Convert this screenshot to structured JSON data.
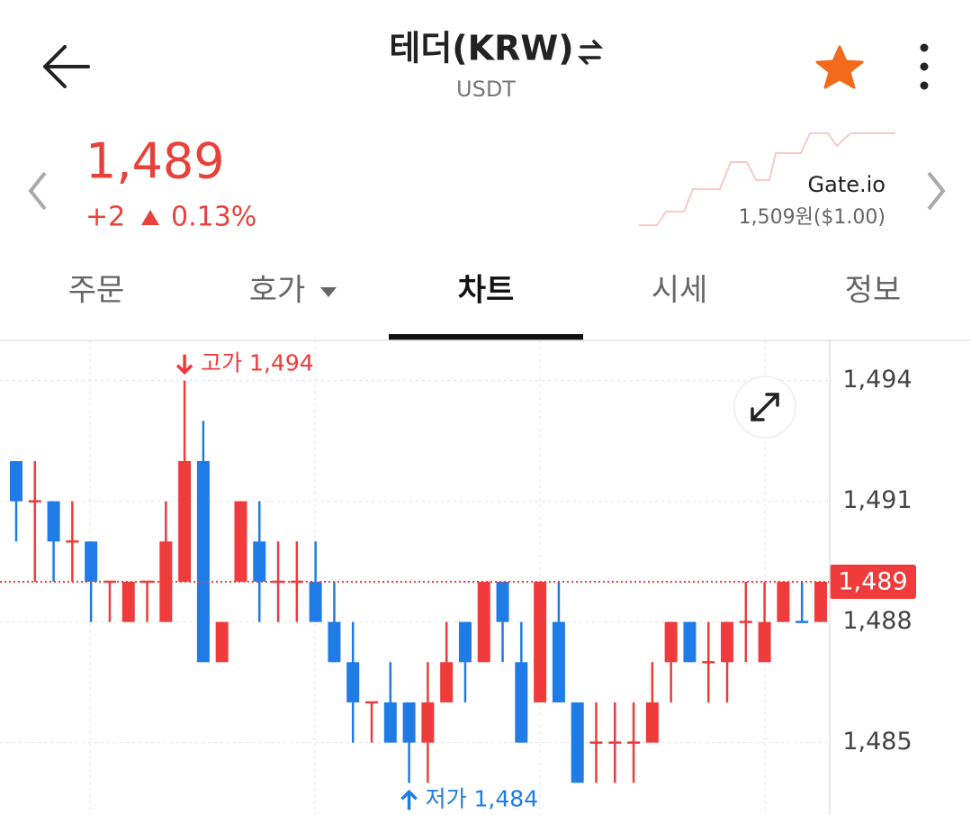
{
  "header": {
    "title": "테더(KRW)",
    "subtitle": "USDT"
  },
  "price": {
    "value": "1,489",
    "change": "+2",
    "change_rate": "0.13%"
  },
  "reference": {
    "exchange": "Gate.io",
    "price": "1,509원($1.00)"
  },
  "tabs": [
    "주문",
    "호가",
    "차트",
    "시세",
    "정보"
  ],
  "active_tab": 2,
  "chart_data": {
    "type": "candlestick",
    "up_color": "#ef3b3b",
    "down_color": "#1f7ce6",
    "open": [
      1492,
      1491,
      1491,
      1490,
      1490,
      1489,
      1488,
      1489,
      1488,
      1489,
      1492,
      1487,
      1489,
      1490,
      1489,
      1489,
      1489,
      1488,
      1487,
      1486,
      1486,
      1486,
      1485,
      1486,
      1488,
      1487,
      1489,
      1487,
      1486,
      1488,
      1486,
      1485,
      1485,
      1485,
      1485,
      1487,
      1488,
      1487,
      1487,
      1488,
      1487,
      1488,
      1488,
      1488
    ],
    "high": [
      1492,
      1492,
      1491,
      1491,
      1490,
      1489,
      1489,
      1489,
      1491,
      1494,
      1493,
      1488,
      1491,
      1491,
      1490,
      1490,
      1490,
      1489,
      1488,
      1486,
      1487,
      1486,
      1487,
      1488,
      1488,
      1489,
      1489,
      1488,
      1489,
      1489,
      1486,
      1486,
      1486,
      1486,
      1487,
      1488,
      1488,
      1488,
      1488,
      1489,
      1489,
      1489,
      1489,
      1489
    ],
    "low": [
      1490,
      1489,
      1489,
      1489,
      1488,
      1488,
      1488,
      1488,
      1488,
      1489,
      1487,
      1487,
      1489,
      1488,
      1488,
      1488,
      1488,
      1487,
      1485,
      1485,
      1485,
      1484,
      1484,
      1486,
      1486,
      1487,
      1487,
      1485,
      1486,
      1486,
      1484,
      1484,
      1484,
      1484,
      1485,
      1486,
      1487,
      1486,
      1486,
      1487,
      1487,
      1488,
      1488,
      1488
    ],
    "close": [
      1491,
      1491,
      1490,
      1490,
      1489,
      1489,
      1489,
      1489,
      1490,
      1492,
      1487,
      1488,
      1491,
      1489,
      1489,
      1489,
      1488,
      1487,
      1486,
      1486,
      1485,
      1485,
      1486,
      1487,
      1487,
      1489,
      1488,
      1485,
      1489,
      1486,
      1484,
      1485,
      1485,
      1485,
      1486,
      1488,
      1487,
      1487,
      1488,
      1488,
      1488,
      1489,
      1488,
      1489
    ],
    "ylim": [
      1483.2,
      1495
    ],
    "yticks": [
      {
        "value": 1494,
        "label": "1,494"
      },
      {
        "value": 1491,
        "label": "1,491"
      },
      {
        "value": 1488,
        "label": "1,488"
      },
      {
        "value": 1485,
        "label": "1,485"
      }
    ],
    "grid": true,
    "current": {
      "value": 1489,
      "label": "1,489"
    },
    "high_label": "고가 1,494",
    "low_label": "저가 1,484"
  }
}
